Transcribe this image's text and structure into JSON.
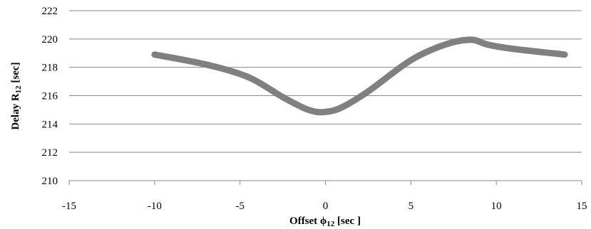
{
  "chart_data": {
    "type": "line",
    "title": "",
    "xlabel_main": "Offset ϕ",
    "xlabel_sub": "12",
    "xlabel_suffix": " [sec ]",
    "ylabel_main": "Delay R",
    "ylabel_sub": "12",
    "ylabel_suffix": " [sec]",
    "xlim": [
      -15,
      15
    ],
    "ylim": [
      210,
      222
    ],
    "xticks": [
      -15,
      -10,
      -5,
      0,
      5,
      10,
      15
    ],
    "yticks": [
      210,
      212,
      214,
      216,
      218,
      220,
      222
    ],
    "grid": "horizontal",
    "legend": "none",
    "series": [
      {
        "color": "#808080",
        "x": [
          -10,
          -7,
          -4.5,
          -2.5,
          -1,
          0,
          1,
          2.5,
          5,
          7,
          8.5,
          9.5,
          11,
          14
        ],
        "y": [
          218.9,
          218.2,
          217.3,
          215.9,
          215.0,
          214.85,
          215.2,
          216.3,
          218.5,
          219.6,
          219.95,
          219.6,
          219.3,
          218.9
        ]
      }
    ]
  }
}
